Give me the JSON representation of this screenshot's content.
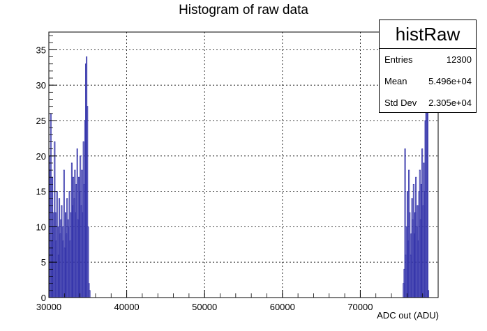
{
  "chart_data": {
    "type": "bar",
    "title": "Histogram of raw data",
    "xlabel": "ADC out (ADU)",
    "ylabel": "",
    "xlim": [
      30000,
      80000
    ],
    "ylim": [
      0,
      37.5
    ],
    "grid": true,
    "x_ticks": [
      "30000",
      "40000",
      "50000",
      "60000",
      "70000"
    ],
    "y_ticks": [
      "0",
      "5",
      "10",
      "15",
      "20",
      "25",
      "30",
      "35"
    ],
    "bar_color": "#3333aa",
    "bin_width": 100,
    "bins_low": {
      "start": 30000,
      "counts": [
        20,
        18,
        26,
        8,
        17,
        10,
        12,
        22,
        12,
        8,
        15,
        10,
        6,
        14,
        9,
        11,
        13,
        10,
        8,
        18,
        7,
        12,
        9,
        14,
        11,
        10,
        15,
        8,
        12,
        19,
        13,
        17,
        14,
        18,
        12,
        16,
        21,
        11,
        17,
        15,
        20,
        13,
        18,
        12,
        22,
        16,
        25,
        33,
        34,
        27,
        10,
        2,
        1
      ]
    },
    "bins_high": {
      "start": 75500,
      "counts": [
        2,
        4,
        21,
        6,
        10,
        15,
        8,
        18,
        12,
        6,
        9,
        14,
        11,
        16,
        9,
        12,
        17,
        10,
        13,
        8,
        15,
        18,
        11,
        16,
        21,
        13,
        19,
        15,
        25,
        27,
        30,
        33,
        1
      ]
    }
  },
  "stats": {
    "name": "histRaw",
    "rows": [
      {
        "label": "Entries",
        "value": "12300"
      },
      {
        "label": "Mean",
        "value": "5.496e+04"
      },
      {
        "label": "Std Dev",
        "value": "2.305e+04"
      }
    ]
  }
}
